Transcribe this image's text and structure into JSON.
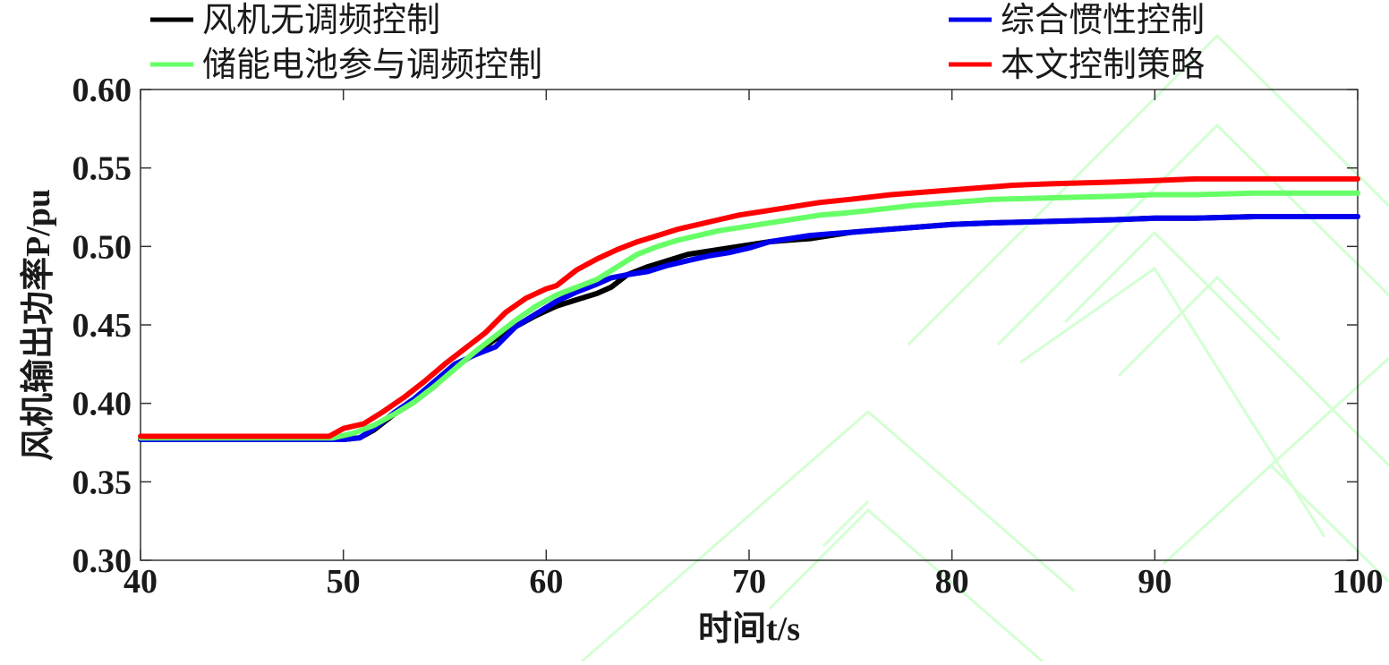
{
  "chart_data": {
    "type": "line",
    "title": "",
    "xlabel": "时间t/s",
    "ylabel": "风机输出功率P/pu",
    "xlim": [
      40,
      100
    ],
    "ylim": [
      0.3,
      0.6
    ],
    "xticks": [
      40,
      50,
      60,
      70,
      80,
      90,
      100
    ],
    "yticks": [
      0.3,
      0.35,
      0.4,
      0.45,
      0.5,
      0.55,
      0.6
    ],
    "xtick_labels": [
      "40",
      "50",
      "60",
      "70",
      "80",
      "90",
      "100"
    ],
    "ytick_labels": [
      "0.30",
      "0.35",
      "0.40",
      "0.45",
      "0.50",
      "0.55",
      "0.60"
    ],
    "grid": false,
    "legend_position": "top",
    "series": [
      {
        "name": "风机无调频控制",
        "color": "#000000",
        "x": [
          40,
          48,
          50,
          50.8,
          51.5,
          52.5,
          53.5,
          54.5,
          55.5,
          56.5,
          57.5,
          58.5,
          59.5,
          60.5,
          61.5,
          62.5,
          63.2,
          64,
          65,
          66,
          67,
          68,
          69,
          70,
          71,
          72,
          73,
          74,
          75,
          76,
          78,
          80,
          82,
          85,
          88,
          90,
          92,
          95,
          98,
          100
        ],
        "y": [
          0.377,
          0.377,
          0.377,
          0.378,
          0.383,
          0.393,
          0.401,
          0.411,
          0.423,
          0.432,
          0.441,
          0.449,
          0.456,
          0.462,
          0.466,
          0.47,
          0.474,
          0.482,
          0.487,
          0.491,
          0.495,
          0.497,
          0.499,
          0.501,
          0.503,
          0.504,
          0.505,
          0.507,
          0.509,
          0.51,
          0.512,
          0.514,
          0.515,
          0.516,
          0.517,
          0.518,
          0.518,
          0.519,
          0.519,
          0.519
        ]
      },
      {
        "name": "综合惯性控制",
        "color": "#0000ee",
        "x": [
          40,
          48,
          50,
          50.8,
          51.5,
          52.5,
          53.5,
          54.5,
          55.5,
          56.5,
          57.5,
          58.5,
          59.5,
          60.5,
          61.5,
          62.5,
          63.2,
          64,
          65,
          66,
          67,
          68,
          69,
          70,
          71,
          72,
          73,
          74,
          75,
          76,
          78,
          80,
          82,
          85,
          88,
          90,
          92,
          95,
          98,
          100
        ],
        "y": [
          0.377,
          0.377,
          0.377,
          0.378,
          0.384,
          0.394,
          0.403,
          0.414,
          0.425,
          0.431,
          0.436,
          0.449,
          0.457,
          0.465,
          0.471,
          0.476,
          0.48,
          0.482,
          0.484,
          0.488,
          0.491,
          0.494,
          0.496,
          0.499,
          0.503,
          0.505,
          0.507,
          0.508,
          0.509,
          0.51,
          0.512,
          0.514,
          0.515,
          0.516,
          0.517,
          0.518,
          0.518,
          0.519,
          0.519,
          0.519
        ]
      },
      {
        "name": "储能电池参与调频控制",
        "color": "#66ff66",
        "x": [
          40,
          48,
          49.5,
          50.5,
          51.5,
          52.5,
          53.5,
          54.5,
          55.5,
          56.5,
          57.5,
          58.5,
          59.5,
          60.5,
          61.5,
          62.5,
          63.5,
          64.5,
          65.5,
          66.5,
          67.5,
          68.5,
          69.5,
          70.5,
          71.5,
          72.5,
          73.5,
          74.5,
          76,
          78,
          80,
          82,
          85,
          88,
          90,
          92,
          95,
          98,
          100
        ],
        "y": [
          0.378,
          0.378,
          0.378,
          0.381,
          0.386,
          0.393,
          0.401,
          0.411,
          0.422,
          0.433,
          0.443,
          0.453,
          0.462,
          0.469,
          0.474,
          0.479,
          0.487,
          0.495,
          0.5,
          0.504,
          0.507,
          0.51,
          0.512,
          0.514,
          0.516,
          0.518,
          0.52,
          0.521,
          0.523,
          0.526,
          0.528,
          0.53,
          0.531,
          0.532,
          0.533,
          0.533,
          0.534,
          0.534,
          0.534
        ]
      },
      {
        "name": "本文控制策略",
        "color": "#ff0000",
        "x": [
          40,
          48,
          49.3,
          50,
          51,
          52,
          53,
          54,
          55,
          56,
          57,
          58,
          59,
          60,
          60.5,
          61.5,
          62.5,
          63.5,
          64.5,
          65.5,
          66.5,
          67.5,
          68.5,
          69.5,
          70.5,
          71.5,
          72.5,
          73.5,
          75,
          77,
          79,
          81,
          83,
          85,
          88,
          90,
          92,
          95,
          98,
          100
        ],
        "y": [
          0.379,
          0.379,
          0.379,
          0.384,
          0.387,
          0.395,
          0.404,
          0.414,
          0.425,
          0.435,
          0.445,
          0.458,
          0.467,
          0.473,
          0.475,
          0.485,
          0.492,
          0.498,
          0.503,
          0.507,
          0.511,
          0.514,
          0.517,
          0.52,
          0.522,
          0.524,
          0.526,
          0.528,
          0.53,
          0.533,
          0.535,
          0.537,
          0.539,
          0.54,
          0.541,
          0.542,
          0.543,
          0.543,
          0.543,
          0.543
        ]
      }
    ],
    "legend": [
      {
        "label": "风机无调频控制",
        "color": "#000000"
      },
      {
        "label": "储能电池参与调频控制",
        "color": "#66ff66"
      },
      {
        "label": "综合惯性控制",
        "color": "#0000ee"
      },
      {
        "label": "本文控制策略",
        "color": "#ff0000"
      }
    ]
  }
}
